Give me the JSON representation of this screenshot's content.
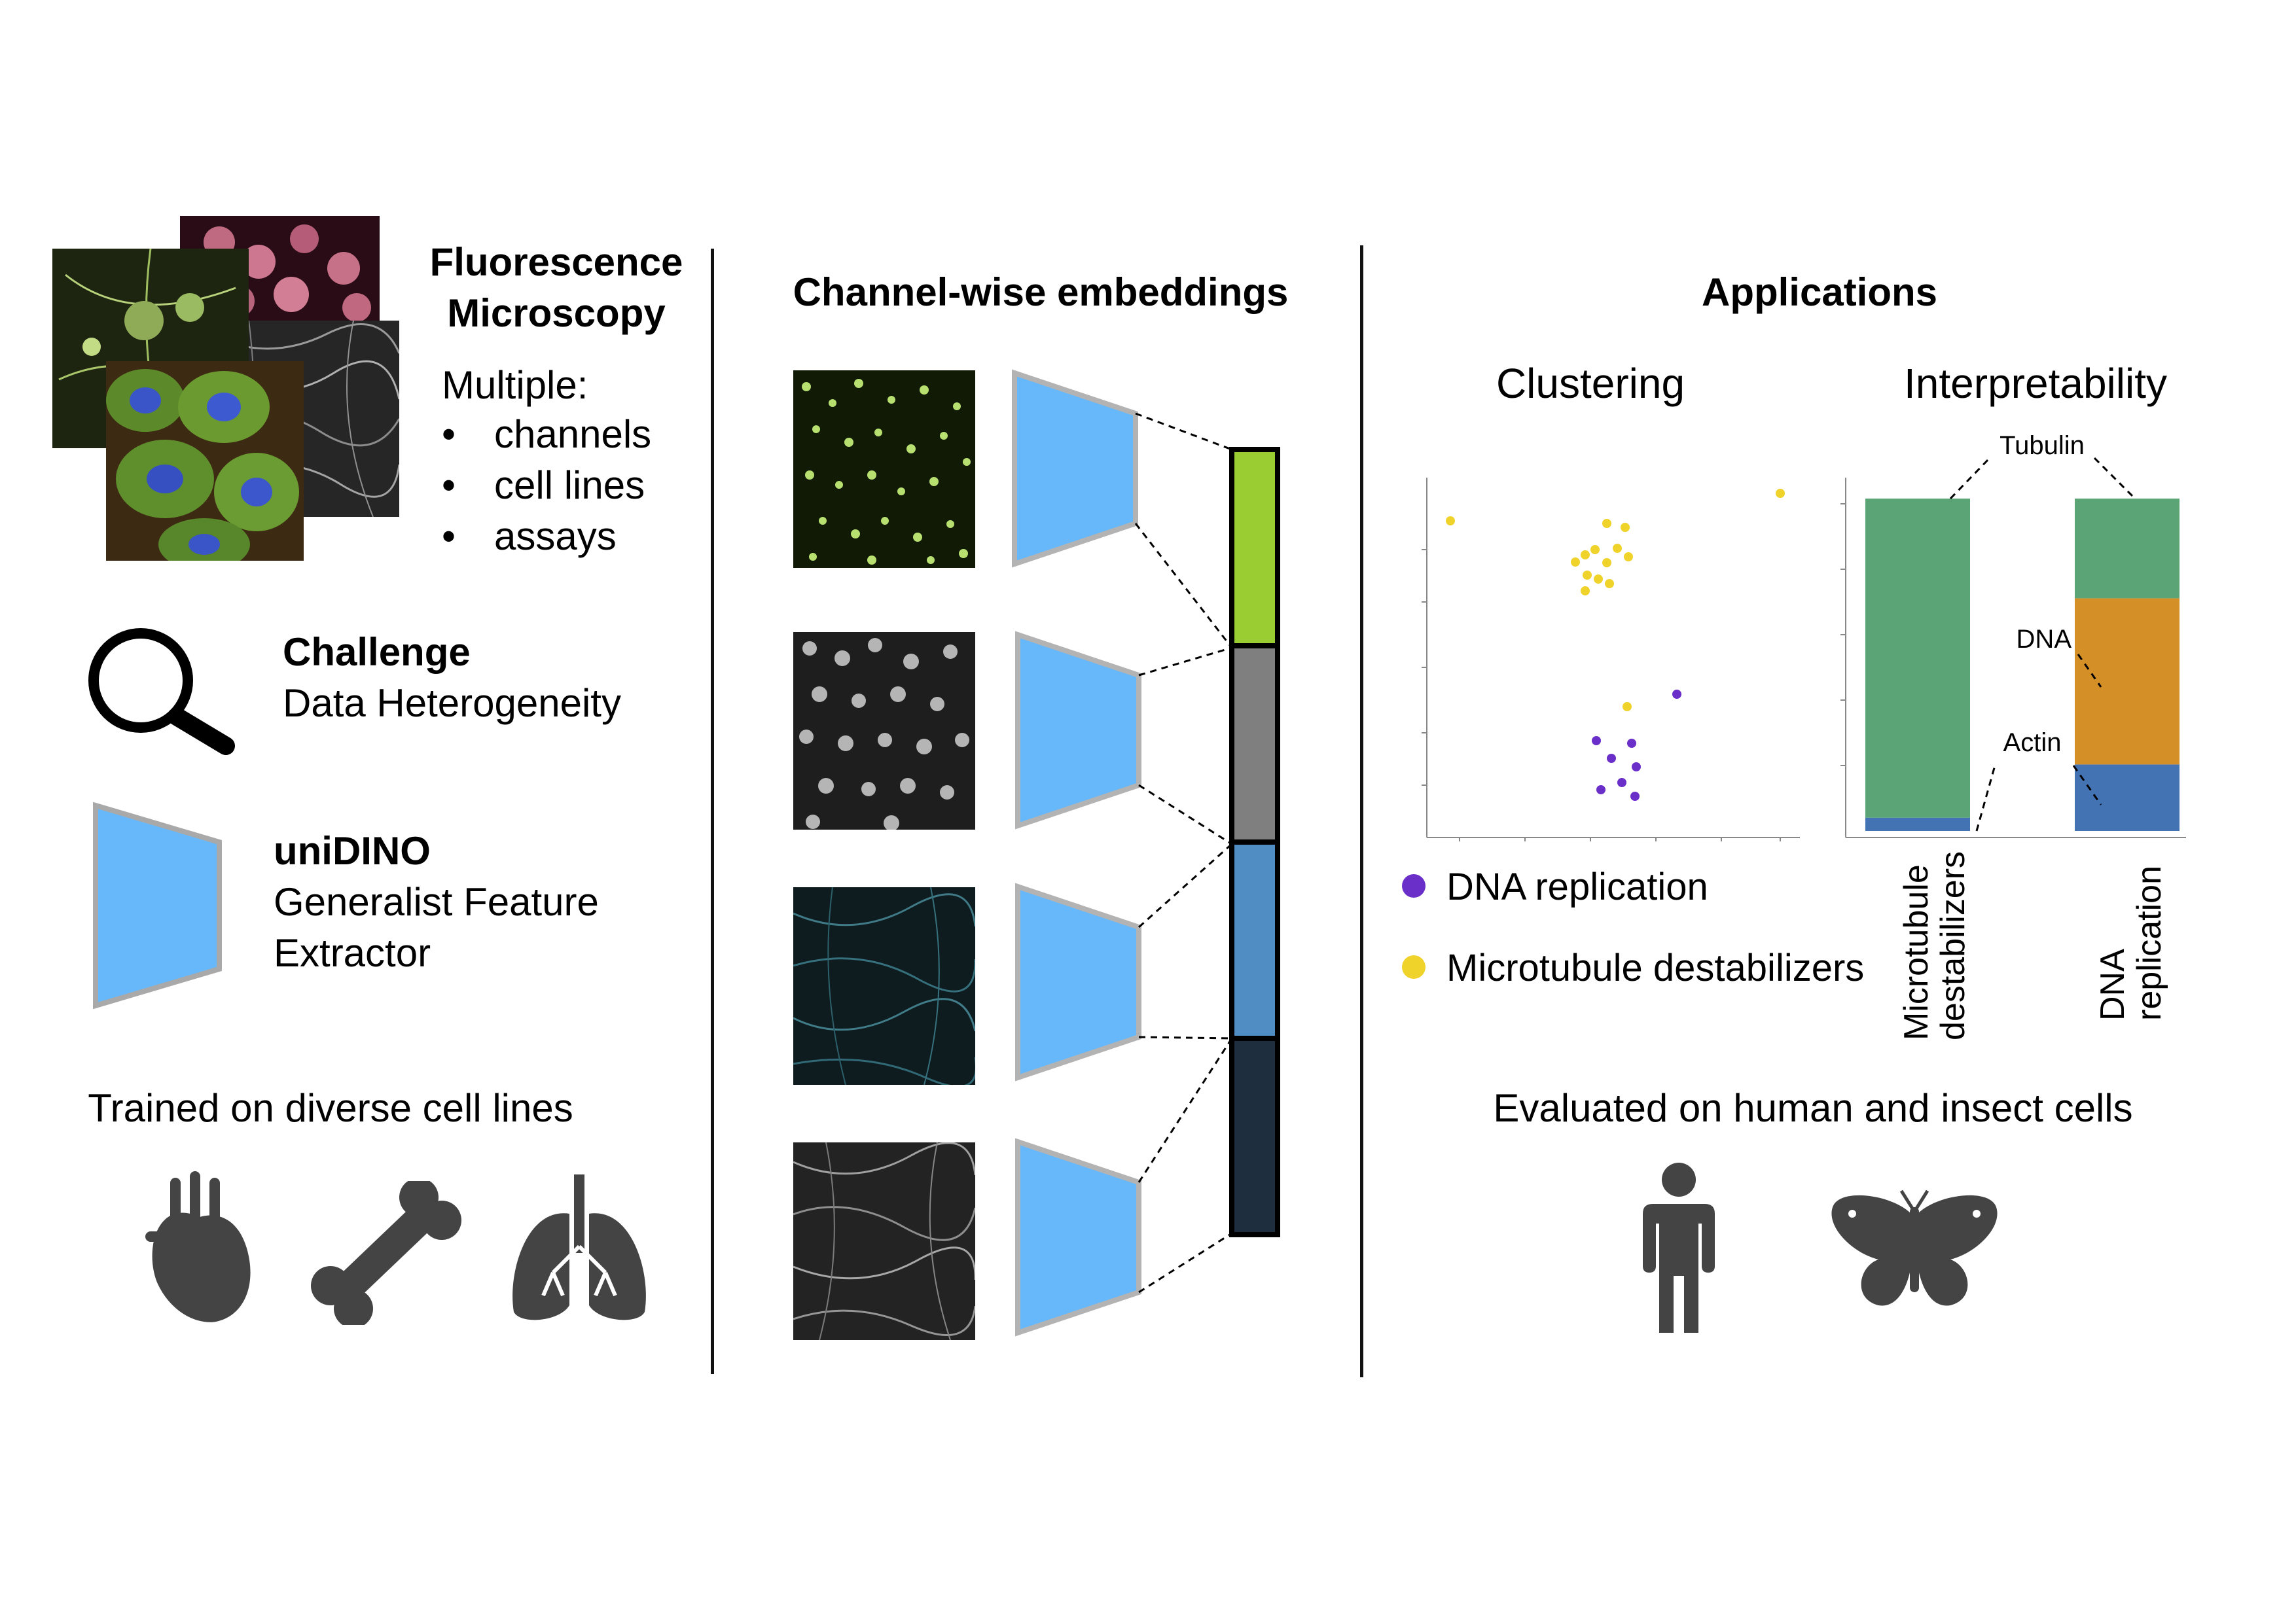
{
  "left": {
    "title_line1": "Fluorescence",
    "title_line2": "Microscopy",
    "multiple_label": "Multiple:",
    "bullets": [
      "channels",
      "cell lines",
      "assays"
    ],
    "challenge_title": "Challenge",
    "challenge_text": "Data Heterogeneity",
    "model_name": "uniDINO",
    "model_desc_line1": "Generalist Feature",
    "model_desc_line2": "Extractor",
    "trained_caption": "Trained on diverse cell lines",
    "organ_icons": [
      "heart-icon",
      "bone-icon",
      "lungs-icon"
    ]
  },
  "middle": {
    "title": "Channel-wise embeddings",
    "channel_colors": [
      "#9ACD32",
      "#7F7F7F",
      "#4F8DC2",
      "#1E2E3E"
    ],
    "encoder_color": "#66B8FA"
  },
  "right": {
    "title": "Applications",
    "clustering_label": "Clustering",
    "interpretability_label": "Interpretability",
    "legend": [
      {
        "label": "DNA replication",
        "color": "#6A2FC8"
      },
      {
        "label": "Microtubule destabilizers",
        "color": "#F0D32A"
      }
    ],
    "bar_annotations": {
      "tubulin": "Tubulin",
      "dna": "DNA",
      "actin": "Actin"
    },
    "bar_categories": [
      "Microtubule destabilizers",
      "DNA replication"
    ],
    "bar_colors": {
      "tubulin": "#5BA476",
      "dna": "#D48F27",
      "actin": "#4473B4"
    },
    "evaluated_caption": "Evaluated on human and insect cells",
    "organism_icons": [
      "human-icon",
      "butterfly-icon"
    ]
  },
  "chart_data": {
    "type": "bar",
    "stacked": true,
    "categories": [
      "Microtubule destabilizers",
      "DNA replication"
    ],
    "series": [
      {
        "name": "Actin",
        "values": [
          0.04,
          0.2
        ]
      },
      {
        "name": "DNA",
        "values": [
          0.0,
          0.5
        ]
      },
      {
        "name": "Tubulin",
        "values": [
          0.96,
          0.3
        ]
      }
    ],
    "ylim": [
      0,
      1
    ]
  }
}
